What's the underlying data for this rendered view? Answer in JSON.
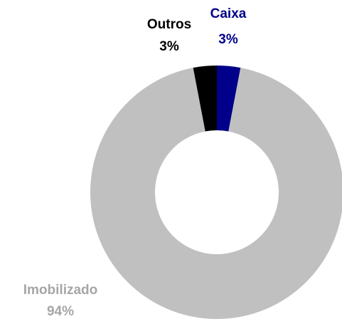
{
  "chart_data": {
    "type": "donut",
    "categories": [
      "Caixa",
      "Imobilizado",
      "Outros"
    ],
    "values": [
      3,
      94,
      3
    ],
    "value_labels": [
      "3%",
      "94%",
      "3%"
    ],
    "colors": [
      "#00008b",
      "#c0c0c0",
      "#000000"
    ]
  }
}
